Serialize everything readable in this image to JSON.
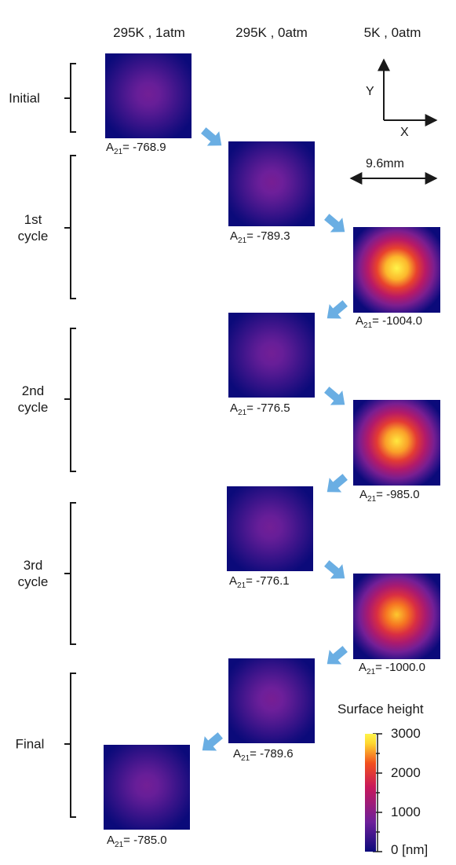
{
  "columns": [
    "295K , 1atm",
    "295K , 0atm",
    "5K , 0atm"
  ],
  "rows": {
    "initial": "Initial",
    "cycle1": [
      "1st",
      "cycle"
    ],
    "cycle2": [
      "2nd",
      "cycle"
    ],
    "cycle3": [
      "3rd",
      "cycle"
    ],
    "final": "Final"
  },
  "coefficient": {
    "symbol": "A",
    "subscript": "21"
  },
  "maps": [
    {
      "id": "initial-295k-1atm",
      "a21": "= -768.9",
      "peak_nm": 800
    },
    {
      "id": "cycle1-295k-0atm",
      "a21": "= -789.3",
      "peak_nm": 850
    },
    {
      "id": "cycle1-5k-0atm",
      "a21": "= -1004.0",
      "peak_nm": 3000
    },
    {
      "id": "cycle2-295k-0atm",
      "a21": "= -776.5",
      "peak_nm": 800
    },
    {
      "id": "cycle2-5k-0atm",
      "a21": "= -985.0",
      "peak_nm": 2900
    },
    {
      "id": "cycle3-295k-0atm",
      "a21": "= -776.1",
      "peak_nm": 800
    },
    {
      "id": "cycle3-5k-0atm",
      "a21": "= -1000.0",
      "peak_nm": 2700
    },
    {
      "id": "final-295k-0atm",
      "a21": "= -789.6",
      "peak_nm": 850
    },
    {
      "id": "final-295k-1atm",
      "a21": "= -785.0",
      "peak_nm": 800
    }
  ],
  "axes": {
    "y": "Y",
    "x": "X"
  },
  "scale_bar": "9.6mm",
  "colorbar": {
    "title": "Surface height",
    "ticks": [
      "3000",
      "2000",
      "1000",
      "0  [nm]"
    ],
    "range": [
      0,
      3000
    ]
  },
  "colors": {
    "arrow": "#6aaee3",
    "low": "#0b0a7a",
    "mid": "#c8185a",
    "high": "#fff44a"
  }
}
